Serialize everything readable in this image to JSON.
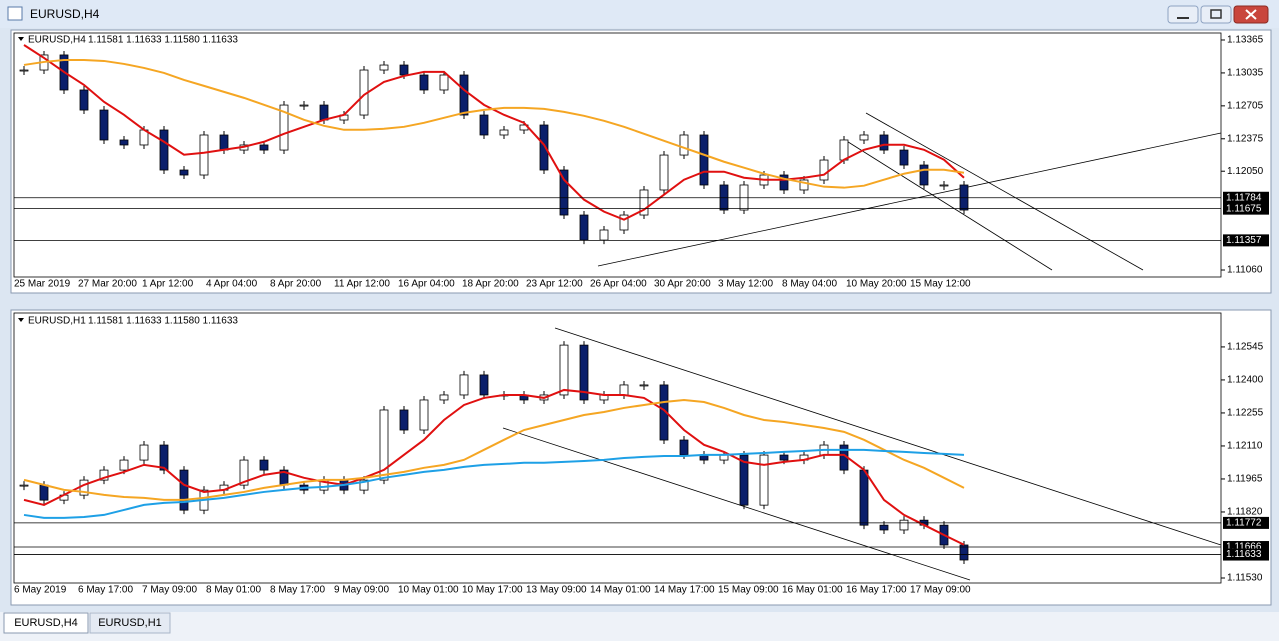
{
  "window": {
    "title": "EURUSD,H4"
  },
  "tabs": [
    "EURUSD,H4",
    "EURUSD,H1"
  ],
  "chart_data": [
    {
      "type": "candlestick",
      "title": "EURUSD,H4",
      "ohlc": "1.11581 1.11633 1.11580 1.11633",
      "ylim": [
        1.1099,
        1.13435
      ],
      "yticks": [
        1.13365,
        1.13035,
        1.12705,
        1.12375,
        {
          "value": 1.1205,
          "label": "1.12050"
        },
        {
          "value": 1.1106,
          "label": "1.11060"
        }
      ],
      "levels": [
        1.11784,
        1.11675,
        1.11357
      ],
      "x_labels": [
        "25 Mar 2019",
        "27 Mar 20:00",
        "1 Apr 12:00",
        "4 Apr 04:00",
        "8 Apr 20:00",
        "11 Apr 12:00",
        "16 Apr 04:00",
        "18 Apr 20:00",
        "23 Apr 12:00",
        "26 Apr 04:00",
        "30 Apr 20:00",
        "3 May 12:00",
        "8 May 04:00",
        "10 May 20:00",
        "15 May 12:00"
      ],
      "closes": [
        1.13064,
        1.13215,
        1.12864,
        1.12663,
        1.12363,
        1.12313,
        1.12463,
        1.12062,
        1.12012,
        1.12413,
        1.12262,
        1.12313,
        1.12262,
        1.12713,
        1.12713,
        1.12563,
        1.12613,
        1.13064,
        1.13114,
        1.13014,
        1.12864,
        1.13014,
        1.12613,
        1.12413,
        1.12463,
        1.12513,
        1.12062,
        1.11611,
        1.1136,
        1.11461,
        1.11611,
        1.11862,
        1.12212,
        1.12413,
        1.11912,
        1.11661,
        1.11912,
        1.12012,
        1.11862,
        1.11962,
        1.12162,
        1.12363,
        1.12413,
        1.12262,
        1.12112,
        1.11912,
        1.11912,
        1.11661
      ],
      "series": [
        {
          "color": "#e01010",
          "values": [
            1.13315,
            1.13185,
            1.13045,
            1.12915,
            1.12745,
            1.12615,
            1.12465,
            1.12345,
            1.12215,
            1.12235,
            1.12265,
            1.12295,
            1.12345,
            1.12425,
            1.12495,
            1.12565,
            1.12615,
            1.12815,
            1.12945,
            1.13005,
            1.13045,
            1.13045,
            1.12865,
            1.12715,
            1.12615,
            1.12535,
            1.12315,
            1.11965,
            1.11765,
            1.11645,
            1.11565,
            1.11665,
            1.11815,
            1.11965,
            1.12045,
            1.12045,
            1.11985,
            1.11965,
            1.11965,
            1.11985,
            1.12015,
            1.12165,
            1.12265,
            1.12315,
            1.12315,
            1.12265,
            1.12165,
            1.11985
          ]
        },
        {
          "color": "#f5a623",
          "values": [
            1.13115,
            1.13145,
            1.13165,
            1.13165,
            1.13155,
            1.13125,
            1.13085,
            1.13035,
            1.12965,
            1.12905,
            1.12845,
            1.12785,
            1.12715,
            1.12645,
            1.12565,
            1.12505,
            1.12465,
            1.12465,
            1.12475,
            1.12495,
            1.12535,
            1.12585,
            1.12635,
            1.12665,
            1.12685,
            1.12685,
            1.12675,
            1.12645,
            1.12605,
            1.12555,
            1.12495,
            1.12425,
            1.12355,
            1.12285,
            1.12215,
            1.12145,
            1.12085,
            1.12025,
            1.11975,
            1.11935,
            1.11895,
            1.11885,
            1.11905,
            1.11965,
            1.12025,
            1.12065,
            1.12065,
            1.12035
          ]
        }
      ]
    },
    {
      "type": "candlestick",
      "title": "EURUSD,H1",
      "ohlc": "1.11581 1.11633 1.11580 1.11633",
      "ylim": [
        1.11508,
        1.12694
      ],
      "yticks": [
        1.12545,
        {
          "value": 1.124,
          "label": "1.12400"
        },
        1.12255,
        {
          "value": 1.1211,
          "label": "1.12110"
        },
        1.11965,
        {
          "value": 1.1182,
          "label": "1.11820"
        },
        {
          "value": 1.1153,
          "label": "1.11530"
        }
      ],
      "levels": [
        1.11772,
        1.11666,
        1.11633
      ],
      "x_labels": [
        "6 May 2019",
        "6 May 17:00",
        "7 May 09:00",
        "8 May 01:00",
        "8 May 17:00",
        "9 May 09:00",
        "10 May 01:00",
        "10 May 17:00",
        "13 May 09:00",
        "14 May 01:00",
        "14 May 17:00",
        "15 May 09:00",
        "16 May 01:00",
        "16 May 17:00",
        "17 May 09:00"
      ],
      "closes": [
        1.11938,
        1.11872,
        1.11894,
        1.1196,
        1.12004,
        1.12048,
        1.12114,
        1.12004,
        1.11828,
        1.11916,
        1.11938,
        1.12048,
        1.12004,
        1.11938,
        1.11916,
        1.1196,
        1.11916,
        1.1196,
        1.12268,
        1.1218,
        1.12312,
        1.12334,
        1.12422,
        1.12334,
        1.12334,
        1.12312,
        1.12334,
        1.12553,
        1.12312,
        1.12334,
        1.12378,
        1.12378,
        1.12136,
        1.1207,
        1.12048,
        1.1207,
        1.1185,
        1.1207,
        1.12048,
        1.1207,
        1.12114,
        1.12004,
        1.11762,
        1.11741,
        1.11784,
        1.11762,
        1.11675,
        1.11609
      ],
      "series": [
        {
          "color": "#e01010",
          "values": [
            1.11873,
            1.11851,
            1.11895,
            1.11939,
            1.1197,
            1.11996,
            1.12027,
            1.12014,
            1.11939,
            1.11908,
            1.11917,
            1.11952,
            1.11983,
            1.11996,
            1.1197,
            1.11952,
            1.11939,
            1.1197,
            1.12005,
            1.12071,
            1.12137,
            1.12224,
            1.1229,
            1.12321,
            1.12334,
            1.12334,
            1.12321,
            1.12356,
            1.12347,
            1.12334,
            1.12334,
            1.12321,
            1.12268,
            1.1218,
            1.12115,
            1.12084,
            1.1204,
            1.12027,
            1.1204,
            1.12049,
            1.12071,
            1.12071,
            1.12005,
            1.11873,
            1.11807,
            1.11763,
            1.11719,
            1.11676
          ]
        },
        {
          "color": "#f5a623",
          "values": [
            1.11961,
            1.11939,
            1.11917,
            1.11908,
            1.11895,
            1.11886,
            1.11882,
            1.11873,
            1.11873,
            1.11882,
            1.11895,
            1.11908,
            1.11926,
            1.11939,
            1.11952,
            1.11961,
            1.11961,
            1.1197,
            1.11983,
            1.11996,
            1.12014,
            1.12027,
            1.12049,
            1.12093,
            1.12137,
            1.1218,
            1.12202,
            1.12224,
            1.12246,
            1.12259,
            1.12277,
            1.1229,
            1.12303,
            1.12312,
            1.12303,
            1.12277,
            1.12246,
            1.12224,
            1.12215,
            1.12202,
            1.12189,
            1.12172,
            1.12137,
            1.12093,
            1.12049,
            1.12014,
            1.1197,
            1.11926
          ]
        },
        {
          "color": "#1ea0e6",
          "values": [
            1.11807,
            1.11794,
            1.11794,
            1.11798,
            1.11807,
            1.11829,
            1.11851,
            1.1186,
            1.11864,
            1.11873,
            1.11882,
            1.11895,
            1.11908,
            1.11917,
            1.11926,
            1.1193,
            1.11939,
            1.11952,
            1.1197,
            1.11983,
            1.11996,
            1.12005,
            1.12018,
            1.12027,
            1.12031,
            1.12036,
            1.12036,
            1.1204,
            1.12044,
            1.12049,
            1.12057,
            1.12062,
            1.12066,
            1.12066,
            1.12071,
            1.12071,
            1.12075,
            1.12079,
            1.12084,
            1.12088,
            1.12093,
            1.12093,
            1.12093,
            1.12088,
            1.12084,
            1.12079,
            1.12075,
            1.12071
          ]
        }
      ]
    }
  ]
}
